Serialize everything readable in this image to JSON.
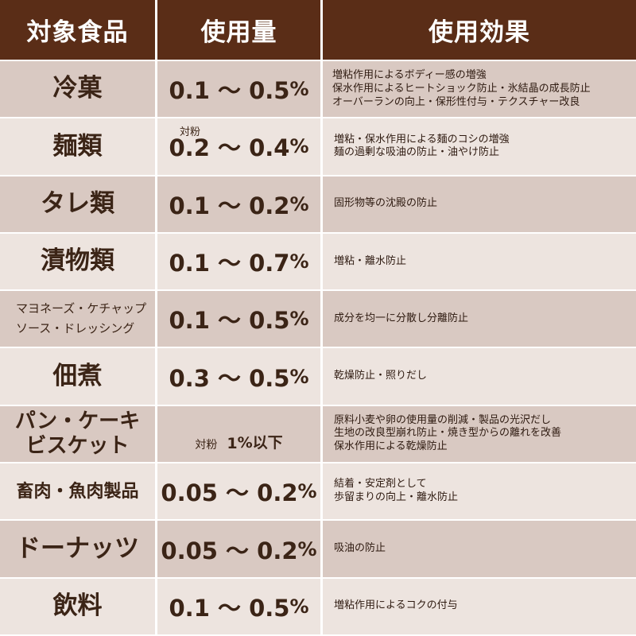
{
  "header": {
    "col1": "対象食品",
    "col2": "使用量",
    "col3": "使用効果"
  },
  "rows": [
    {
      "food": "冷菓",
      "amount": "0.1 〜 0.5",
      "unit": "%",
      "note": "",
      "effects": [
        "増粘作用によるボディー感の増強",
        "保水作用によるヒートショック防止・氷結晶の成長防止",
        "オーバーランの向上・保形性付与・テクスチャー改良"
      ]
    },
    {
      "food": "麺類",
      "amount": "0.2 〜 0.4",
      "unit": "%",
      "note": "対粉",
      "effects": [
        "増粘・保水作用による麺のコシの増強",
        "麺の過剰な吸油の防止・油やけ防止"
      ]
    },
    {
      "food": "タレ類",
      "amount": "0.1 〜 0.2",
      "unit": "%",
      "note": "",
      "effects": [
        "固形物等の沈殿の防止"
      ]
    },
    {
      "food": "漬物類",
      "amount": "0.1 〜 0.7",
      "unit": "%",
      "note": "",
      "effects": [
        "増粘・離水防止"
      ]
    },
    {
      "food_lines": [
        "マヨネーズ・ケチャップ",
        "ソース・ドレッシング"
      ],
      "amount": "0.1 〜 0.5",
      "unit": "%",
      "note": "",
      "effects": [
        "成分を均一に分散し分離防止"
      ]
    },
    {
      "food": "佃煮",
      "amount": "0.3 〜 0.5",
      "unit": "%",
      "note": "",
      "effects": [
        "乾燥防止・照りだし"
      ]
    },
    {
      "food_lines": [
        "パン・ケーキ",
        "ビスケット"
      ],
      "amount": "1",
      "unit": "%以下",
      "note": "対粉",
      "effects": [
        "原料小麦や卵の使用量の削減・製品の光沢だし",
        "生地の改良型崩れ防止・焼き型からの離れを改善",
        "保水作用による乾燥防止"
      ]
    },
    {
      "food": "畜肉・魚肉製品",
      "amount": "0.05 〜 0.2",
      "unit": "%",
      "note": "",
      "effects": [
        "結着・安定剤として",
        "歩留まりの向上・離水防止"
      ]
    },
    {
      "food": "ドーナッツ",
      "amount": "0.05 〜 0.2",
      "unit": "%",
      "note": "",
      "effects": [
        "吸油の防止"
      ]
    },
    {
      "food": "飲料",
      "amount": "0.1 〜 0.5",
      "unit": "%",
      "note": "",
      "effects": [
        "増粘作用によるコクの付与"
      ]
    }
  ],
  "colors": {
    "header_bg": "#5a2d17",
    "row_dark": "#d9c9c2",
    "row_light": "#ede4df",
    "text": "#3b2416"
  }
}
